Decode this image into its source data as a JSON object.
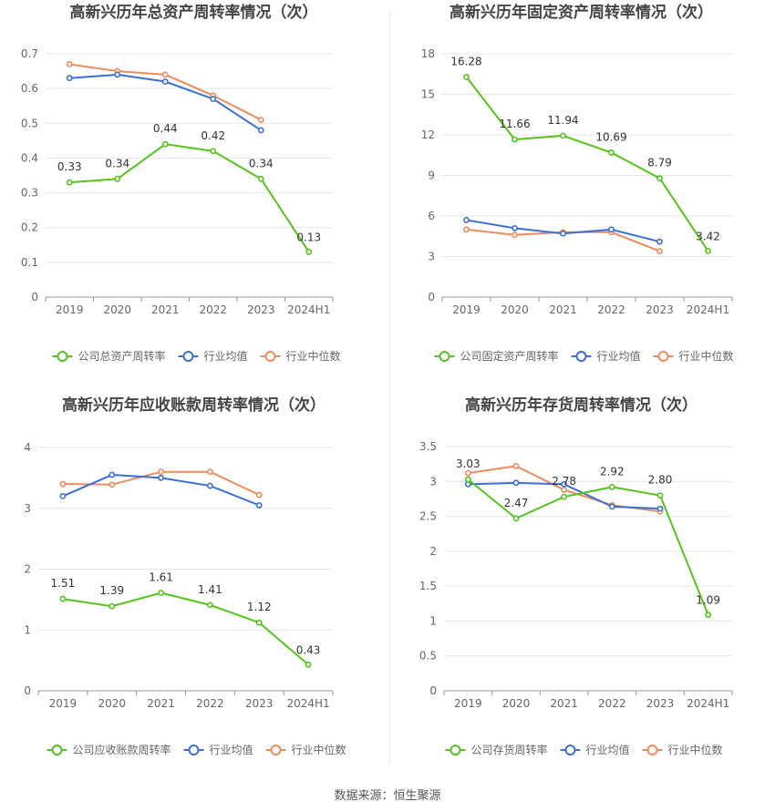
{
  "source_text": "数据来源：恒生聚源",
  "colors": {
    "company": "#52c41a",
    "avg": "#3a6fd8",
    "median": "#f08a5d",
    "grid": "#e6e6e6",
    "axis": "#999999",
    "text": "#666666",
    "title": "#444444"
  },
  "chart_data": [
    {
      "type": "line",
      "title": "高新兴历年总资产周转率情况（次）",
      "categories": [
        "2019",
        "2020",
        "2021",
        "2022",
        "2023",
        "2024H1"
      ],
      "yticks": [
        "0",
        "0.1",
        "0.2",
        "0.3",
        "0.4",
        "0.5",
        "0.6",
        "0.7"
      ],
      "ylim": [
        0,
        0.7
      ],
      "series": [
        {
          "name": "公司总资产周转率",
          "values": [
            0.33,
            0.34,
            0.44,
            0.42,
            0.34,
            0.13
          ],
          "labels": [
            "0.33",
            "0.34",
            "0.44",
            "0.42",
            "0.34",
            "0.13"
          ]
        },
        {
          "name": "行业均值",
          "values": [
            0.63,
            0.64,
            0.62,
            0.57,
            0.48,
            null
          ]
        },
        {
          "name": "行业中位数",
          "values": [
            0.67,
            0.65,
            0.64,
            0.58,
            0.51,
            null
          ]
        }
      ]
    },
    {
      "type": "line",
      "title": "高新兴历年固定资产周转率情况（次）",
      "categories": [
        "2019",
        "2020",
        "2021",
        "2022",
        "2023",
        "2024H1"
      ],
      "yticks": [
        "0",
        "3",
        "6",
        "9",
        "12",
        "15",
        "18"
      ],
      "ylim": [
        0,
        18
      ],
      "series": [
        {
          "name": "公司固定资产周转率",
          "values": [
            16.28,
            11.66,
            11.94,
            10.69,
            8.79,
            3.42
          ],
          "labels": [
            "16.28",
            "11.66",
            "11.94",
            "10.69",
            "8.79",
            "3.42"
          ]
        },
        {
          "name": "行业均值",
          "values": [
            5.7,
            5.1,
            4.7,
            5.0,
            4.1,
            null
          ]
        },
        {
          "name": "行业中位数",
          "values": [
            5.0,
            4.6,
            4.8,
            4.8,
            3.4,
            null
          ]
        }
      ]
    },
    {
      "type": "line",
      "title": "高新兴历年应收账款周转率情况（次）",
      "categories": [
        "2019",
        "2020",
        "2021",
        "2022",
        "2023",
        "2024H1"
      ],
      "yticks": [
        "0",
        "1",
        "2",
        "3",
        "4"
      ],
      "ylim": [
        0,
        4
      ],
      "series": [
        {
          "name": "公司应收账款周转率",
          "values": [
            1.51,
            1.39,
            1.61,
            1.41,
            1.12,
            0.43
          ],
          "labels": [
            "1.51",
            "1.39",
            "1.61",
            "1.41",
            "1.12",
            "0.43"
          ]
        },
        {
          "name": "行业均值",
          "values": [
            3.2,
            3.55,
            3.5,
            3.37,
            3.05,
            null
          ]
        },
        {
          "name": "行业中位数",
          "values": [
            3.4,
            3.39,
            3.6,
            3.6,
            3.22,
            null
          ]
        }
      ]
    },
    {
      "type": "line",
      "title": "高新兴历年存货周转率情况（次）",
      "categories": [
        "2019",
        "2020",
        "2021",
        "2022",
        "2023",
        "2024H1"
      ],
      "yticks": [
        "0",
        "0.5",
        "1",
        "1.5",
        "2",
        "2.5",
        "3",
        "3.5"
      ],
      "ylim": [
        0,
        3.5
      ],
      "series": [
        {
          "name": "公司存货周转率",
          "values": [
            3.03,
            2.47,
            2.78,
            2.92,
            2.8,
            1.09
          ],
          "labels": [
            "3.03",
            "2.47",
            "2.78",
            "2.92",
            "2.80",
            "1.09"
          ]
        },
        {
          "name": "行业均值",
          "values": [
            2.96,
            2.98,
            2.96,
            2.64,
            2.61,
            null
          ]
        },
        {
          "name": "行业中位数",
          "values": [
            3.12,
            3.22,
            2.88,
            2.66,
            2.57,
            null
          ]
        }
      ]
    }
  ]
}
